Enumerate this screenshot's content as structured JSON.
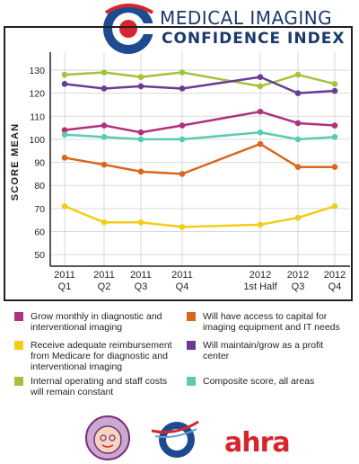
{
  "header": {
    "title_line1": "MEDICAL IMAGING",
    "title_line2": "CONFIDENCE INDEX"
  },
  "colors": {
    "magenta": "#b0317f",
    "orange": "#d9681e",
    "yellow": "#f2cd1a",
    "purple": "#6a3b96",
    "green": "#a3c43a",
    "teal": "#5ccab2",
    "logo_blue": "#1e4b8f",
    "logo_red": "#d7262b"
  },
  "chart_data": {
    "type": "line",
    "ylabel": "SCORE MEAN",
    "xlabel": "",
    "ylim": [
      45,
      137
    ],
    "yticks": [
      50,
      60,
      70,
      80,
      90,
      100,
      110,
      120,
      130
    ],
    "categories": [
      {
        "line1": "2011",
        "line2": "Q1"
      },
      {
        "line1": "2011",
        "line2": "Q2"
      },
      {
        "line1": "2011",
        "line2": "Q3"
      },
      {
        "line1": "2011",
        "line2": "Q4"
      },
      {
        "line1": "2012",
        "line2": "1st Half"
      },
      {
        "line1": "2012",
        "line2": "Q3"
      },
      {
        "line1": "2012",
        "line2": "Q4"
      }
    ],
    "series": [
      {
        "name": "Internal operating and staff costs will remain constant",
        "color": "#a3c43a",
        "values": [
          128,
          129,
          127,
          129,
          123,
          128,
          124
        ]
      },
      {
        "name": "Will maintain/grow as a profit center",
        "color": "#6a3b96",
        "values": [
          124,
          122,
          123,
          122,
          127,
          120,
          121
        ]
      },
      {
        "name": "Grow monthly in diagnostic and interventional imaging",
        "color": "#b0317f",
        "values": [
          104,
          106,
          103,
          106,
          112,
          107,
          106
        ]
      },
      {
        "name": "Composite score, all areas",
        "color": "#5ccab2",
        "values": [
          102,
          101,
          100,
          100,
          103,
          100,
          101
        ]
      },
      {
        "name": "Will have access to capital for imaging equipment and IT needs",
        "color": "#d9681e",
        "values": [
          92,
          89,
          86,
          85,
          98,
          88,
          88
        ]
      },
      {
        "name": "Receive adequate reimbursement from Medicare for diagnostic and interventional imaging",
        "color": "#f2cd1a",
        "values": [
          71,
          64,
          64,
          62,
          63,
          66,
          71
        ]
      }
    ]
  },
  "legend": [
    {
      "label": "Grow monthly in diagnostic and interventional imaging",
      "color": "#b0317f"
    },
    {
      "label": "Will have access to capital for imaging equipment and IT needs",
      "color": "#d9681e"
    },
    {
      "label": "Receive adequate reimbursement from Medicare for diagnostic and interventional imaging",
      "color": "#f2cd1a"
    },
    {
      "label": "Will maintain/grow as a profit center",
      "color": "#6a3b96"
    },
    {
      "label": "Internal operating and staff costs will remain constant",
      "color": "#a3c43a"
    },
    {
      "label": "Composite score, all areas",
      "color": "#5ccab2"
    }
  ],
  "footer": {
    "ahra_logo_text": "ahra",
    "logos": [
      "grandma-mascot-logo",
      "swoosh-logo",
      "ahra-logo"
    ]
  }
}
